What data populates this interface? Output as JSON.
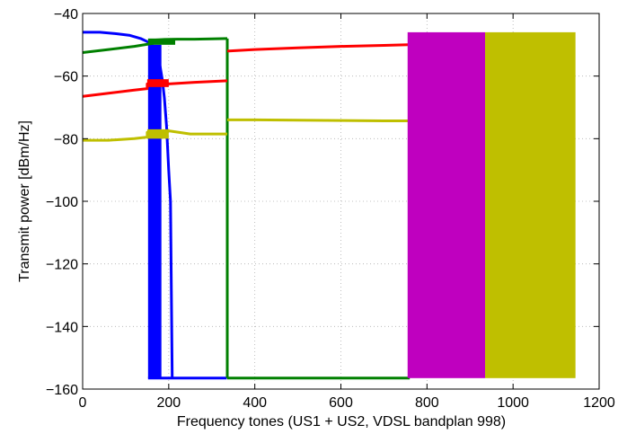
{
  "chart_data": {
    "type": "line",
    "title": "",
    "xlabel": "Frequency tones (US1 + US2, VDSL bandplan 998)",
    "ylabel": "Transmit power [dBm/Hz]",
    "xlim": [
      0,
      1200
    ],
    "ylim": [
      -160,
      -40
    ],
    "xticks": [
      0,
      200,
      400,
      600,
      800,
      1000,
      1200
    ],
    "yticks": [
      -160,
      -140,
      -120,
      -100,
      -80,
      -60,
      -40
    ],
    "xtick_labels": [
      "0",
      "200",
      "400",
      "600",
      "800",
      "1000",
      "1200"
    ],
    "ytick_labels": [
      "−160",
      "−140",
      "−120",
      "−100",
      "−80",
      "−60",
      "−40"
    ],
    "grid": true,
    "legend": "none",
    "colors": {
      "blue": "#0000ff",
      "green": "#008000",
      "red": "#ff0000",
      "magenta": "#bf00bf",
      "olive": "#bfbf00"
    },
    "series": [
      {
        "color": "blue",
        "segments": [
          {
            "x": [
              0,
              40,
              80,
              110,
              135,
              150,
              160,
              165,
              170,
              175,
              180,
              185,
              190,
              195,
              200,
              204
            ],
            "y": [
              -46,
              -46,
              -46.5,
              -47,
              -48,
              -49,
              -50,
              -51,
              -52,
              -54,
              -57,
              -61,
              -67,
              -76,
              -90,
              -100
            ]
          },
          {
            "x": [
              204,
              208
            ],
            "y": [
              -100,
              -156.5
            ]
          }
        ],
        "bands": [
          {
            "x0": 152,
            "x1": 183,
            "y_top": -50,
            "y_bottom": -156.5
          }
        ],
        "floor": {
          "x0": 152,
          "x1": 335,
          "y": -156.5
        }
      },
      {
        "color": "green",
        "segments": [
          {
            "x": [
              0,
              60,
              120,
              165,
              165,
              190,
              220,
              260,
              300,
              336
            ],
            "y": [
              -52.5,
              -51.5,
              -50.5,
              -49.5,
              -48.5,
              -48.3,
              -48.2,
              -48.2,
              -48.1,
              -48
            ]
          },
          {
            "x": [
              336,
              336
            ],
            "y": [
              -48,
              -156.5
            ]
          }
        ],
        "bands": [
          {
            "x0": 152,
            "x1": 215,
            "y_top": -48,
            "y_bottom": -50
          }
        ],
        "floor": {
          "x0": 336,
          "x1": 760,
          "y": -156.5
        }
      },
      {
        "color": "red",
        "segments": [
          {
            "x": [
              0,
              60,
              120,
              150,
              150,
              200,
              260,
              336
            ],
            "y": [
              -66.5,
              -65.5,
              -64.5,
              -64,
              -62.5,
              -62.5,
              -62,
              -61.5
            ]
          },
          {
            "x": [
              336,
              340,
              400,
              500,
              600,
              700,
              757
            ],
            "y": [
              -52,
              -52,
              -51.5,
              -51,
              -50.5,
              -50.2,
              -50
            ]
          }
        ],
        "bands": [
          {
            "x0": 150,
            "x1": 200,
            "y_top": -61,
            "y_bottom": -63.5
          }
        ],
        "floor": null
      },
      {
        "color": "olive",
        "segments": [
          {
            "x": [
              0,
              60,
              120,
              150,
              150,
              200,
              250,
              336
            ],
            "y": [
              -80.5,
              -80.5,
              -80,
              -79.5,
              -78,
              -77.5,
              -78.5,
              -78.5
            ]
          },
          {
            "x": [
              336,
              340,
              400,
              500,
              600,
              700,
              757
            ],
            "y": [
              -74,
              -74,
              -74,
              -74.1,
              -74.2,
              -74.3,
              -74.3
            ]
          }
        ],
        "bands": [
          {
            "x0": 150,
            "x1": 200,
            "y_top": -77,
            "y_bottom": -80
          }
        ],
        "floor": null
      },
      {
        "color": "magenta",
        "segments": [],
        "bands": [
          {
            "x0": 755,
            "x1": 935,
            "y_top": -46,
            "y_bottom": -156.5
          }
        ],
        "floor": null
      },
      {
        "color": "olive",
        "segments": [],
        "bands": [
          {
            "x0": 935,
            "x1": 1145,
            "y_top": -46,
            "y_bottom": -156.5
          }
        ],
        "floor": null
      }
    ]
  }
}
